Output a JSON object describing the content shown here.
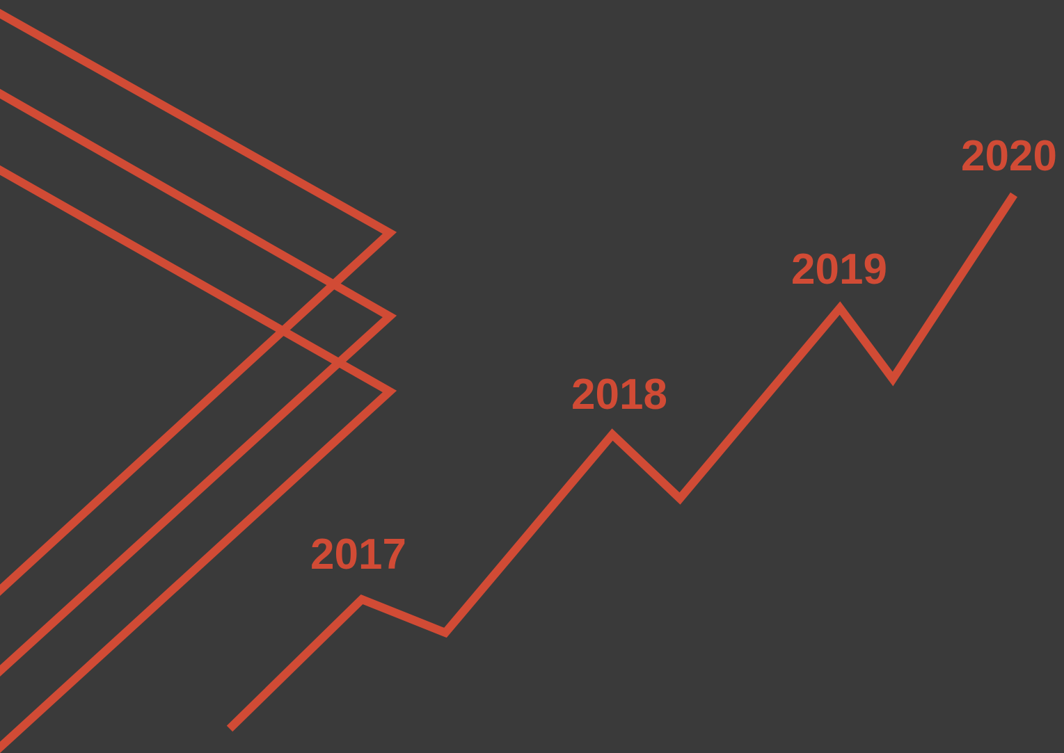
{
  "labels": [
    "2017",
    "2018",
    "2019",
    "2020"
  ]
}
